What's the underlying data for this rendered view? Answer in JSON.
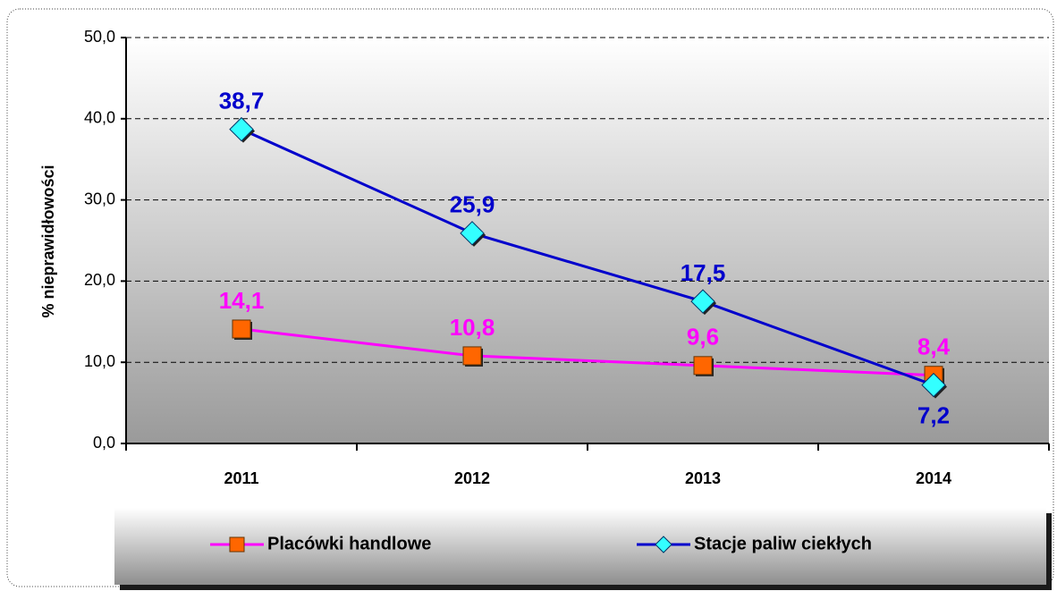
{
  "chart_data": {
    "type": "line",
    "y_label": "% nieprawidłowości",
    "categories": [
      "2011",
      "2012",
      "2013",
      "2014"
    ],
    "series": [
      {
        "name": "Placówki handlowe",
        "color": "#ff00ff",
        "marker_color": "#ff6600",
        "marker": "square",
        "values": [
          14.1,
          10.8,
          9.6,
          8.4
        ],
        "value_labels": [
          "14,1",
          "10,8",
          "9,6",
          "8,4"
        ]
      },
      {
        "name": "Stacje paliw ciekłych",
        "color": "#0000cc",
        "marker_color": "#33ffff",
        "marker": "diamond",
        "values": [
          38.7,
          25.9,
          17.5,
          7.2
        ],
        "value_labels": [
          "38,7",
          "25,9",
          "17,5",
          "7,2"
        ]
      }
    ],
    "ylim": [
      0,
      50
    ],
    "yticks": [
      {
        "value": 0,
        "label": "0,0"
      },
      {
        "value": 10,
        "label": "10,0"
      },
      {
        "value": 20,
        "label": "20,0"
      },
      {
        "value": 30,
        "label": "30,0"
      },
      {
        "value": 40,
        "label": "40,0"
      },
      {
        "value": 50,
        "label": "50,0"
      }
    ],
    "grid": true
  }
}
